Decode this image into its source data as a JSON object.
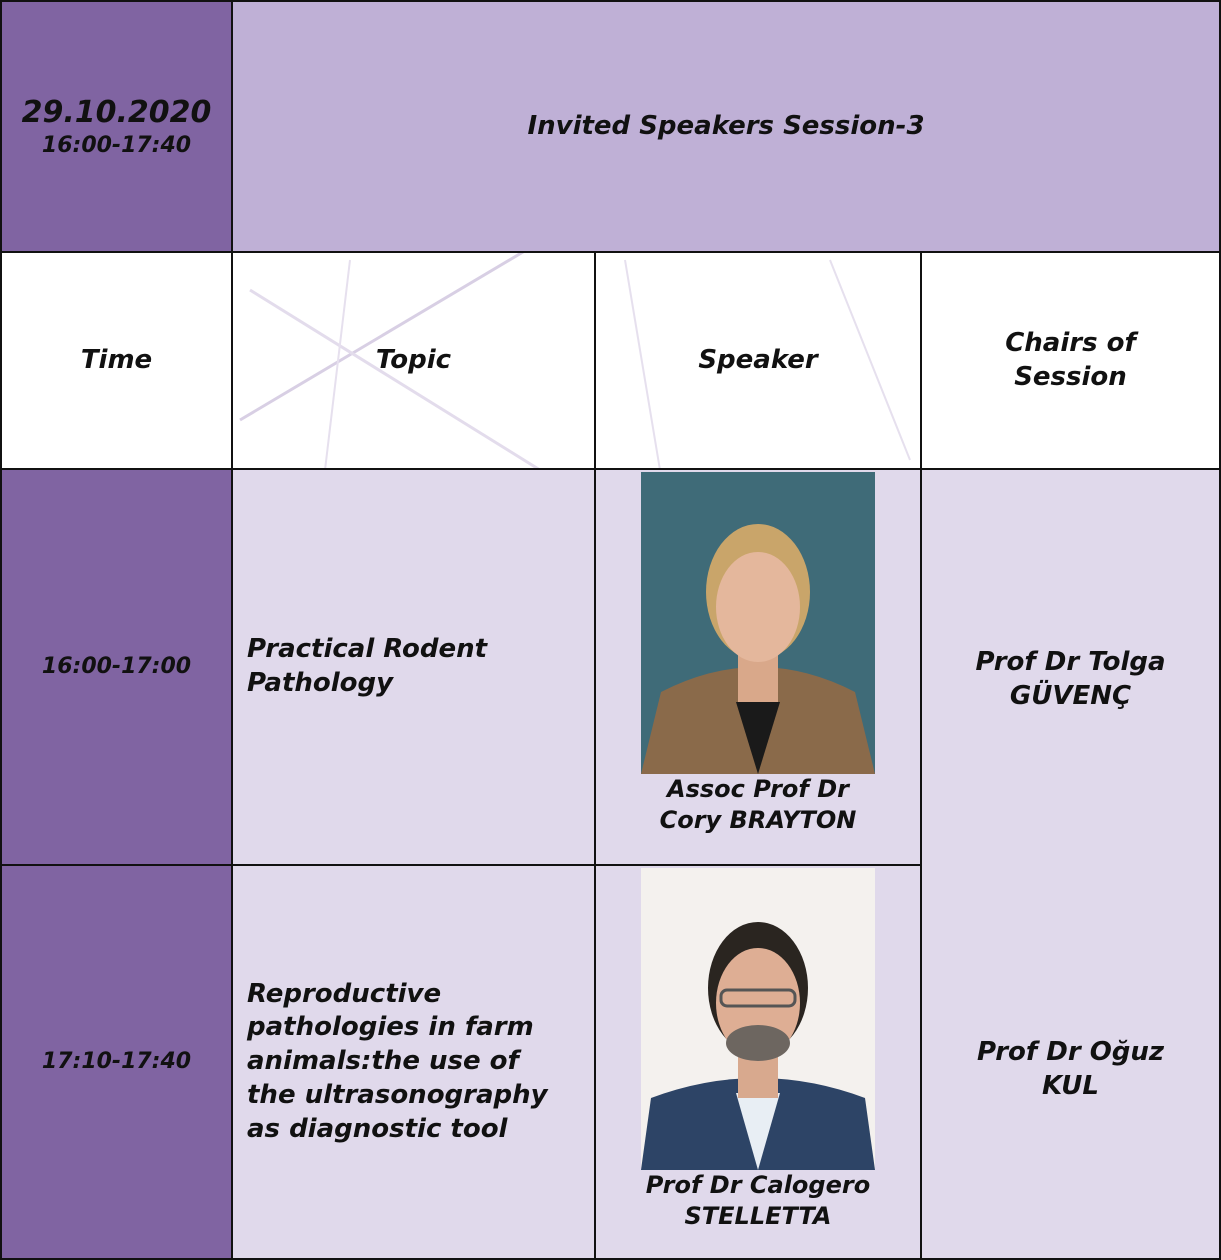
{
  "header": {
    "date": "29.10.2020",
    "time": "16:00-17:40",
    "title": "Invited Speakers Session-3"
  },
  "columns": [
    "Time",
    "Topic",
    "Speaker",
    [
      "Chairs of",
      "Session"
    ]
  ],
  "rows": [
    {
      "time": "16:00-17:00",
      "topic": [
        "Practical Rodent",
        "Pathology"
      ],
      "speaker": [
        "Assoc Prof Dr",
        "Cory BRAYTON"
      ]
    },
    {
      "time": "17:10-17:40",
      "topic": [
        "Reproductive",
        "pathologies in farm",
        "animals:the use of",
        "the ultrasonography",
        "as diagnostic tool"
      ],
      "speaker": [
        "Prof Dr Calogero",
        "STELLETTA"
      ]
    }
  ],
  "chairs": [
    [
      "Prof Dr Tolga",
      "GÜVENÇ"
    ],
    [
      "Prof Dr Oğuz",
      "KUL"
    ]
  ]
}
